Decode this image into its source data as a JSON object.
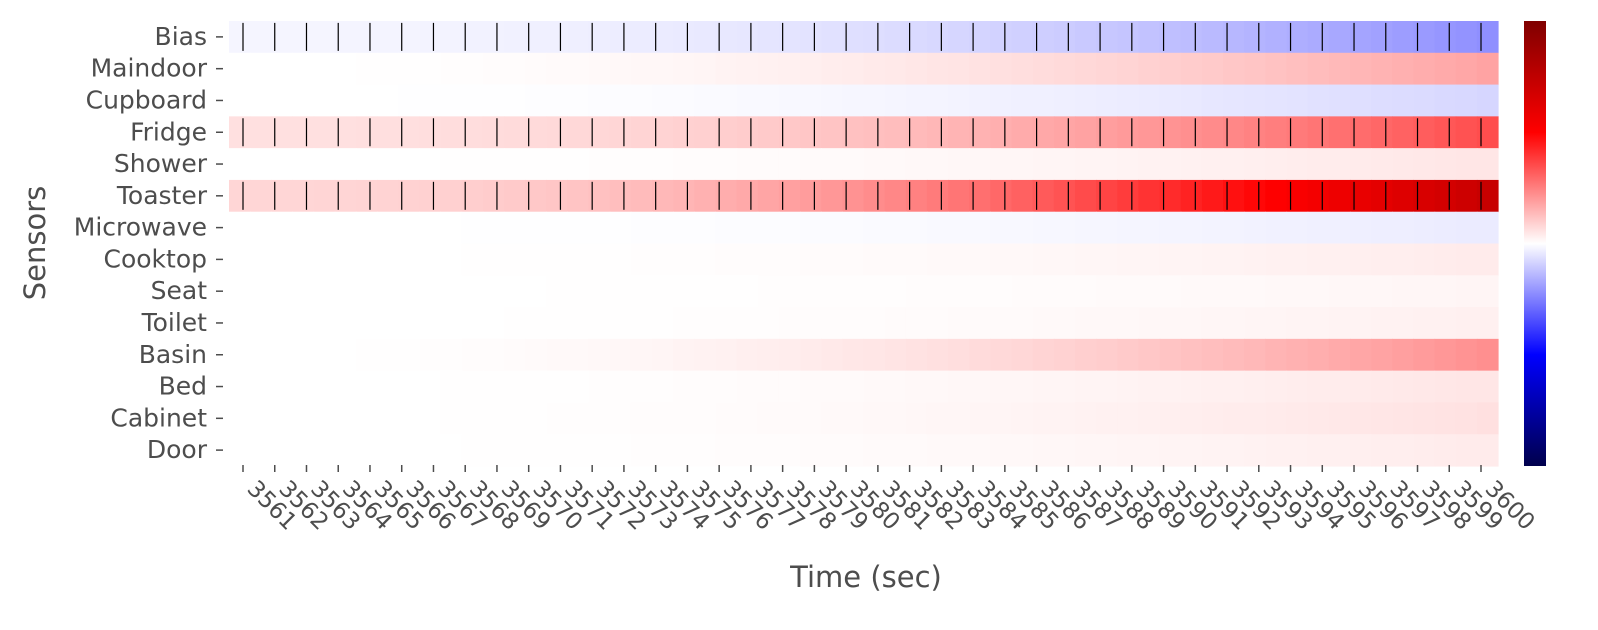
{
  "chart_data": {
    "type": "heatmap",
    "title": "",
    "xlabel": "Time (sec)",
    "ylabel": "Sensors",
    "sensors": [
      "Bias",
      "Maindoor",
      "Cupboard",
      "Fridge",
      "Shower",
      "Toaster",
      "Microwave",
      "Cooktop",
      "Seat",
      "Toilet",
      "Basin",
      "Bed",
      "Cabinet",
      "Door"
    ],
    "x_start": 3561,
    "x_end": 3600,
    "x_tick_labels": [
      "3561",
      "3562",
      "3563",
      "3564",
      "3565",
      "3566",
      "3567",
      "3568",
      "3569",
      "3570",
      "3571",
      "3572",
      "3573",
      "3574",
      "3575",
      "3576",
      "3577",
      "3578",
      "3579",
      "3580",
      "3581",
      "3582",
      "3583",
      "3584",
      "3585",
      "3586",
      "3587",
      "3588",
      "3589",
      "3590",
      "3591",
      "3592",
      "3593",
      "3594",
      "3595",
      "3596",
      "3597",
      "3598",
      "3599",
      "3600"
    ],
    "active_markers": {
      "Bias": "all",
      "Fridge": "all",
      "Toaster": "all"
    },
    "start_values": [
      -0.02,
      0.0,
      0.0,
      0.06,
      0.0,
      0.08,
      0.0,
      0.0,
      0.0,
      0.0,
      0.0,
      0.0,
      0.0,
      0.0
    ],
    "end_values": [
      -0.22,
      0.18,
      -0.08,
      0.35,
      0.05,
      0.72,
      -0.04,
      0.04,
      0.02,
      0.03,
      0.22,
      0.05,
      0.06,
      0.04
    ],
    "color_scale": "seismic",
    "colorbar": {
      "vmin": -1,
      "vmax": 1
    },
    "colors": {
      "high": "#7f0000",
      "mid": "#ffffff",
      "low": "#00004c",
      "marker": "#000000",
      "text": "#4d4d4d"
    },
    "grid": false,
    "legend": "colorbar-right"
  }
}
